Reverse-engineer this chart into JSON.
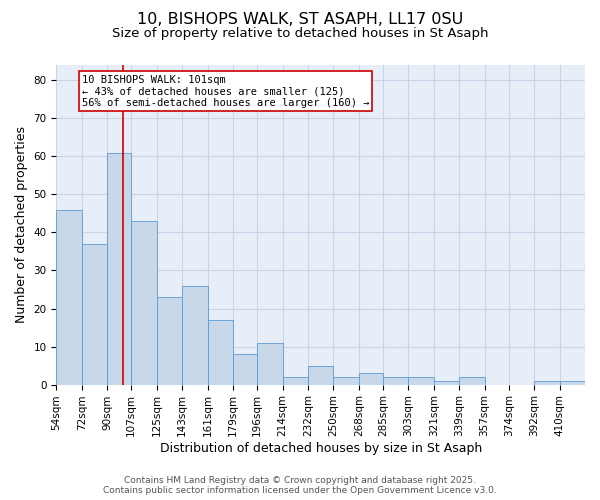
{
  "title1": "10, BISHOPS WALK, ST ASAPH, LL17 0SU",
  "title2": "Size of property relative to detached houses in St Asaph",
  "xlabel": "Distribution of detached houses by size in St Asaph",
  "ylabel": "Number of detached properties",
  "bin_labels": [
    "54sqm",
    "72sqm",
    "90sqm",
    "107sqm",
    "125sqm",
    "143sqm",
    "161sqm",
    "179sqm",
    "196sqm",
    "214sqm",
    "232sqm",
    "250sqm",
    "268sqm",
    "285sqm",
    "303sqm",
    "321sqm",
    "339sqm",
    "357sqm",
    "374sqm",
    "392sqm",
    "410sqm"
  ],
  "values": [
    46,
    37,
    61,
    43,
    23,
    26,
    17,
    8,
    11,
    2,
    5,
    2,
    3,
    2,
    2,
    1,
    2,
    0,
    0,
    1,
    1
  ],
  "bin_edges": [
    54,
    72,
    90,
    107,
    125,
    143,
    161,
    179,
    196,
    214,
    232,
    250,
    268,
    285,
    303,
    321,
    339,
    357,
    374,
    392,
    410
  ],
  "bar_color": "#c8d8e8",
  "bar_edgecolor": "#5b9bd5",
  "property_size": 101,
  "vline_color": "#cc0000",
  "annotation_line1": "10 BISHOPS WALK: 101sqm",
  "annotation_line2": "← 43% of detached houses are smaller (125)",
  "annotation_line3": "56% of semi-detached houses are larger (160) →",
  "annotation_box_color": "white",
  "annotation_box_edgecolor": "#cc0000",
  "ylim": [
    0,
    84
  ],
  "yticks": [
    0,
    10,
    20,
    30,
    40,
    50,
    60,
    70,
    80
  ],
  "grid_color": "#c8d4e8",
  "bg_color": "#e8eef8",
  "footnote": "Contains HM Land Registry data © Crown copyright and database right 2025.\nContains public sector information licensed under the Open Government Licence v3.0.",
  "title_fontsize": 11.5,
  "subtitle_fontsize": 9.5,
  "label_fontsize": 9,
  "tick_fontsize": 7.5,
  "footnote_fontsize": 6.5,
  "annot_fontsize": 7.5
}
